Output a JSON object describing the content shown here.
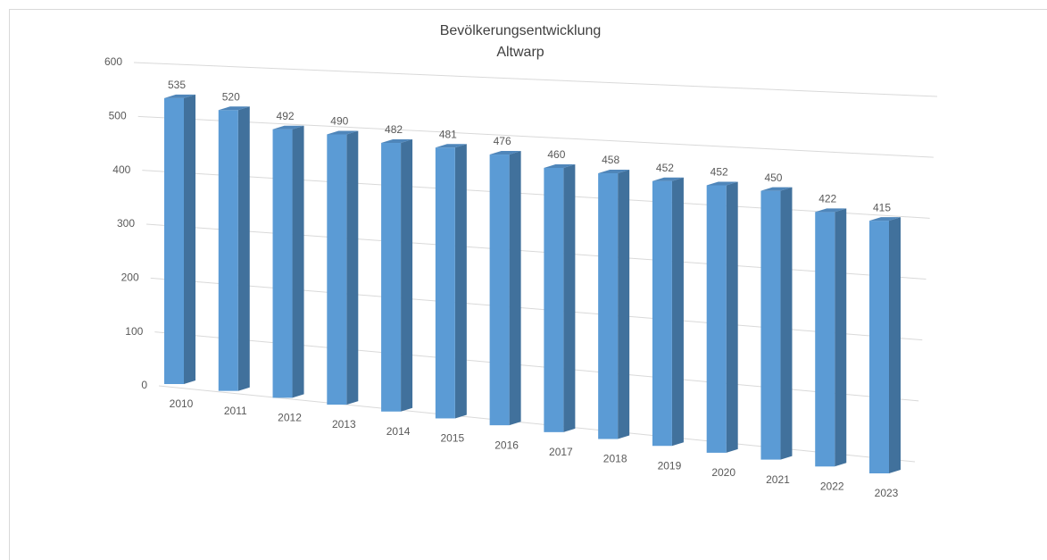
{
  "chart_data": {
    "type": "bar",
    "title": "Bevölkerungsentwicklung",
    "subtitle": "Altwarp",
    "categories": [
      "2010",
      "2011",
      "2012",
      "2013",
      "2014",
      "2015",
      "2016",
      "2017",
      "2018",
      "2019",
      "2020",
      "2021",
      "2022",
      "2023"
    ],
    "values": [
      535,
      520,
      492,
      490,
      482,
      481,
      476,
      460,
      458,
      452,
      452,
      450,
      422,
      415
    ],
    "color": "#5b9bd5",
    "ylim": [
      0,
      600
    ],
    "yticks": [
      0,
      100,
      200,
      300,
      400,
      500,
      600
    ],
    "grid": true
  }
}
